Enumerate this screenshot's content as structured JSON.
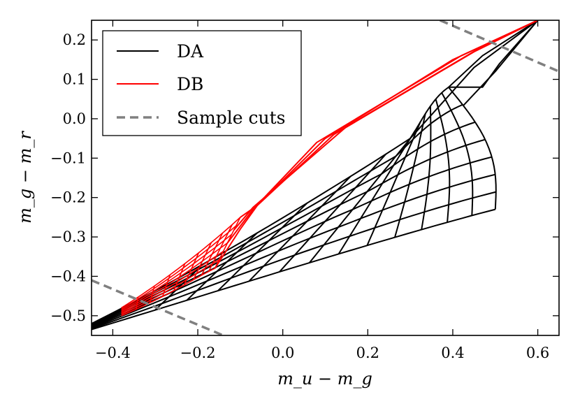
{
  "chart_data": {
    "type": "line",
    "title": "",
    "xlabel": "m_u − m_g",
    "ylabel": "m_g − m_r",
    "xlim": [
      -0.45,
      0.65
    ],
    "ylim": [
      -0.55,
      0.25
    ],
    "x_ticks": [
      "−0.4",
      "−0.2",
      "0.0",
      "0.2",
      "0.4",
      "0.6"
    ],
    "x_tick_values": [
      -0.4,
      -0.2,
      0.0,
      0.2,
      0.4,
      0.6
    ],
    "y_ticks": [
      "0.2",
      "0.1",
      "0.0",
      "−0.1",
      "−0.2",
      "−0.3",
      "−0.4",
      "−0.5"
    ],
    "y_tick_values": [
      0.2,
      0.1,
      0.0,
      -0.1,
      -0.2,
      -0.3,
      -0.4,
      -0.5
    ],
    "legend": {
      "placement": "top-left",
      "entries": [
        {
          "label": "DA",
          "color": "#000000",
          "style": "solid"
        },
        {
          "label": "DB",
          "color": "#ff0000",
          "style": "solid"
        },
        {
          "label": "Sample cuts",
          "color": "#808080",
          "style": "dashed"
        }
      ]
    },
    "series": [
      {
        "name": "DA",
        "color": "#000000",
        "kind": "grid",
        "corners": {
          "cool_low": [
            -0.45,
            -0.535
          ],
          "cool_high": [
            -0.45,
            -0.52
          ],
          "hot_low": [
            0.5,
            -0.23
          ],
          "hot_mid": [
            0.58,
            -0.18
          ],
          "hot_high": [
            0.39,
            0.08
          ],
          "tail_knee": [
            0.47,
            0.08
          ],
          "top_end": [
            0.6,
            0.25
          ]
        }
      },
      {
        "name": "DB",
        "color": "#ff0000",
        "kind": "grid",
        "corners": {
          "cool_low": [
            -0.38,
            -0.5
          ],
          "cool_high": [
            -0.38,
            -0.48
          ],
          "hot_low": [
            -0.16,
            -0.38
          ],
          "hot_high": [
            -0.1,
            -0.25
          ],
          "knee": [
            -0.06,
            -0.22
          ],
          "top_end": [
            0.6,
            0.25
          ]
        }
      },
      {
        "name": "Sample cuts",
        "color": "#808080",
        "kind": "lines",
        "segments": [
          {
            "x": [
              -0.45,
              -0.14
            ],
            "y": [
              -0.41,
              -0.55
            ]
          },
          {
            "x": [
              0.37,
              0.65
            ],
            "y": [
              0.25,
              0.12
            ]
          }
        ]
      }
    ]
  }
}
